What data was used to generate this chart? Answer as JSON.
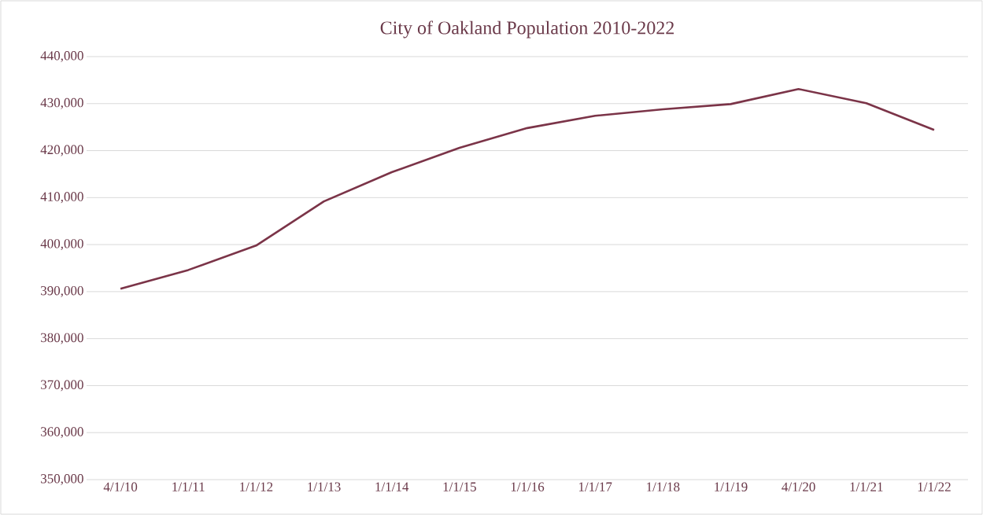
{
  "chart_data": {
    "type": "line",
    "title": "City of Oakland Population 2010-2022",
    "categories": [
      "4/1/10",
      "1/1/11",
      "1/1/12",
      "1/1/13",
      "1/1/14",
      "1/1/15",
      "1/1/16",
      "1/1/17",
      "1/1/18",
      "1/1/19",
      "4/1/20",
      "1/1/21",
      "1/1/22"
    ],
    "series": [
      {
        "color": "#7b3448",
        "values": [
          390600,
          394600,
          399800,
          409200,
          415400,
          420600,
          424800,
          427400,
          428800,
          429900,
          433100,
          430100,
          424400
        ]
      }
    ],
    "ylim": [
      350000,
      440000
    ],
    "yticks": [
      {
        "value": 350000,
        "label": "350,000"
      },
      {
        "value": 360000,
        "label": "360,000"
      },
      {
        "value": 370000,
        "label": "370,000"
      },
      {
        "value": 380000,
        "label": "380,000"
      },
      {
        "value": 390000,
        "label": "390,000"
      },
      {
        "value": 400000,
        "label": "400,000"
      },
      {
        "value": 410000,
        "label": "410,000"
      },
      {
        "value": 420000,
        "label": "420,000"
      },
      {
        "value": 430000,
        "label": "430,000"
      },
      {
        "value": 440000,
        "label": "440,000"
      }
    ],
    "grid": "y",
    "marker": "none",
    "line_style": "solid"
  }
}
